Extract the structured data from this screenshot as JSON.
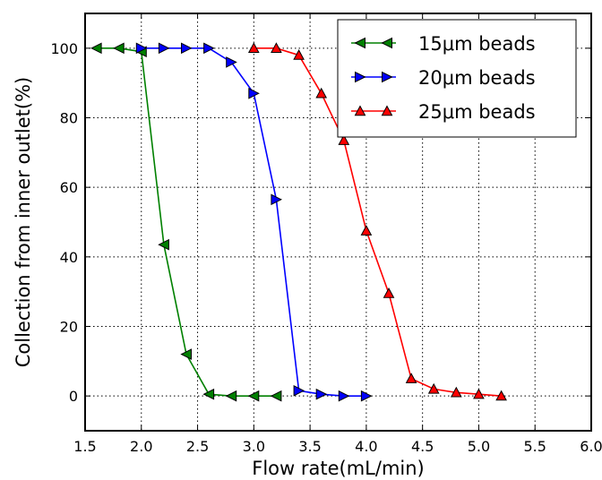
{
  "chart_data": {
    "type": "line",
    "xlabel": "Flow rate(mL/min)",
    "ylabel": "Collection from inner outlet(%)",
    "xlim": [
      1.5,
      6.0
    ],
    "ylim": [
      -10,
      110
    ],
    "xticks": [
      1.5,
      2.0,
      2.5,
      3.0,
      3.5,
      4.0,
      4.5,
      5.0,
      5.5,
      6.0
    ],
    "xtick_labels": [
      "1.5",
      "2.0",
      "2.5",
      "3.0",
      "3.5",
      "4.0",
      "4.5",
      "5.0",
      "5.5",
      "6.0"
    ],
    "yticks": [
      0,
      20,
      40,
      60,
      80,
      100
    ],
    "ytick_labels": [
      "0",
      "20",
      "40",
      "60",
      "80",
      "100"
    ],
    "grid": true,
    "legend_position": "top-right",
    "series": [
      {
        "name": "15μm beads",
        "color": "#008000",
        "marker": "triangle-left",
        "x": [
          1.6,
          1.8,
          2.0,
          2.2,
          2.4,
          2.6,
          2.8,
          3.0,
          3.2
        ],
        "y": [
          100,
          100,
          99,
          43.5,
          12,
          0.5,
          0,
          0,
          0
        ]
      },
      {
        "name": "20μm beads",
        "color": "#0000ff",
        "marker": "triangle-right",
        "x": [
          2.0,
          2.2,
          2.4,
          2.6,
          2.8,
          3.0,
          3.2,
          3.4,
          3.6,
          3.8,
          4.0
        ],
        "y": [
          100,
          100,
          100,
          100,
          96,
          87,
          56.5,
          1.5,
          0.5,
          0,
          0
        ]
      },
      {
        "name": "25μm beads",
        "color": "#ff0000",
        "marker": "triangle-up",
        "x": [
          3.0,
          3.2,
          3.4,
          3.6,
          3.8,
          4.0,
          4.2,
          4.4,
          4.6,
          4.8,
          5.0,
          5.2
        ],
        "y": [
          100,
          100,
          98,
          87,
          73.5,
          47.5,
          29.5,
          5,
          2,
          1,
          0.5,
          0
        ]
      }
    ]
  }
}
